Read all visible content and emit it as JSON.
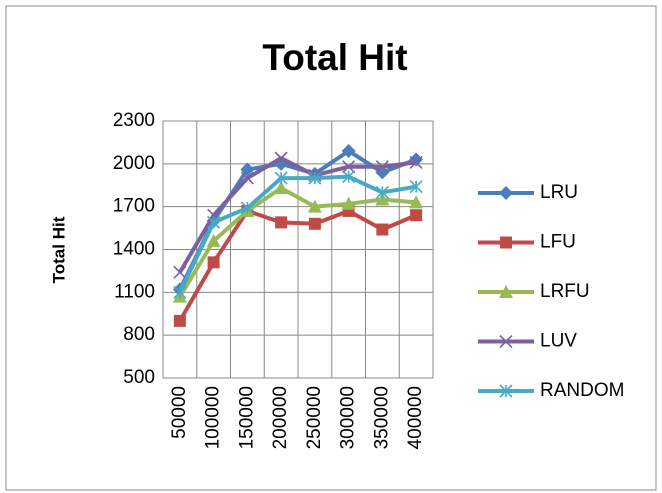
{
  "chart_data": {
    "type": "line",
    "title": "Total Hit",
    "y_label": "Total Hit",
    "categories": [
      "50000",
      "100000",
      "150000",
      "200000",
      "250000",
      "300000",
      "350000",
      "400000"
    ],
    "series": [
      {
        "name": "LRU",
        "color": "#4a7ebb",
        "marker": "diamond",
        "values": [
          1120,
          1600,
          1960,
          2000,
          1930,
          2090,
          1940,
          2030
        ]
      },
      {
        "name": "LFU",
        "color": "#be4b48",
        "marker": "square",
        "values": [
          900,
          1310,
          1670,
          1590,
          1580,
          1670,
          1540,
          1640
        ]
      },
      {
        "name": "LRFU",
        "color": "#98b954",
        "marker": "triangle",
        "values": [
          1070,
          1460,
          1670,
          1830,
          1700,
          1720,
          1750,
          1730
        ]
      },
      {
        "name": "LUV",
        "color": "#7d60a0",
        "marker": "x",
        "values": [
          1240,
          1640,
          1900,
          2040,
          1920,
          1980,
          1980,
          2010
        ]
      },
      {
        "name": "RANDOM",
        "color": "#46aac5",
        "marker": "star",
        "values": [
          1100,
          1590,
          1690,
          1900,
          1900,
          1910,
          1800,
          1840
        ]
      }
    ],
    "ylim": [
      500,
      2300
    ],
    "yticks": [
      500,
      800,
      1100,
      1400,
      1700,
      2000,
      2300
    ],
    "grid": true,
    "legend": "right"
  }
}
